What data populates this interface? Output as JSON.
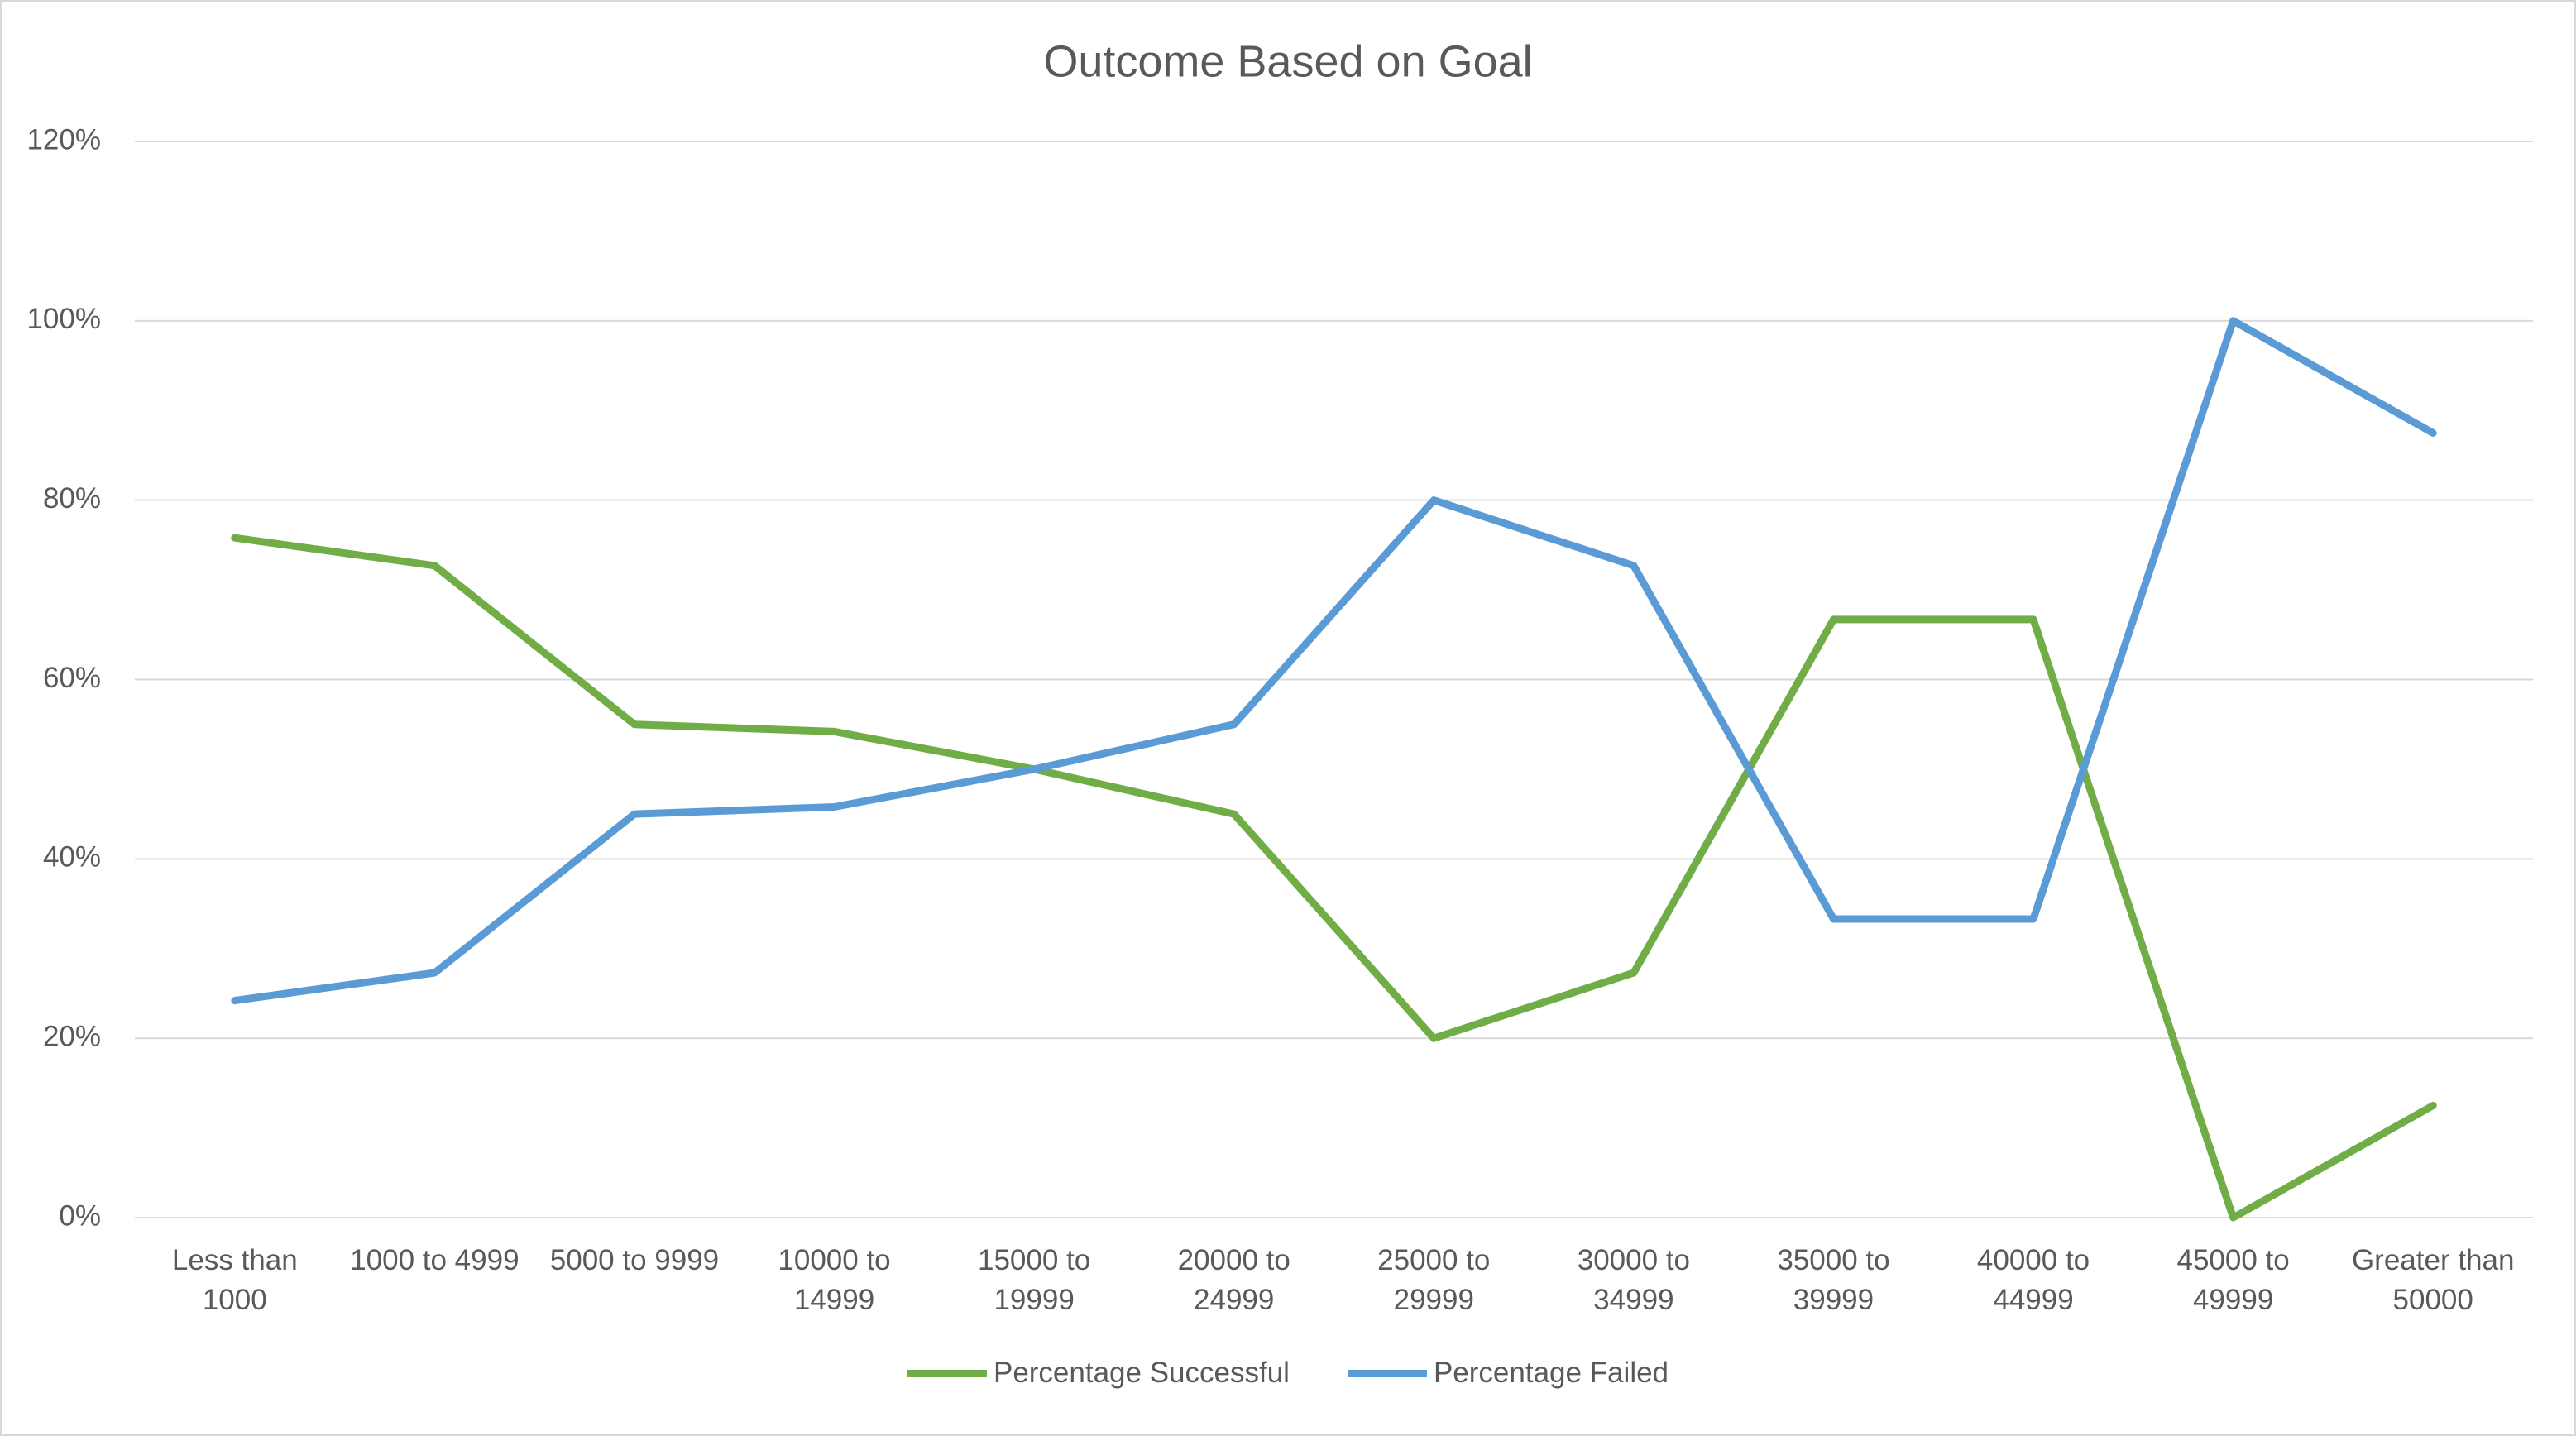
{
  "chart_data": {
    "type": "line",
    "title": "Outcome Based on Goal",
    "categories": [
      "Less than 1000",
      "1000 to 4999",
      "5000 to 9999",
      "10000 to 14999",
      "15000 to 19999",
      "20000 to 24999",
      "25000 to 29999",
      "30000 to 34999",
      "35000 to 39999",
      "40000 to 44999",
      "45000 to 49999",
      "Greater than 50000"
    ],
    "series": [
      {
        "name": "Percentage Successful",
        "color": "#70ad47",
        "values": [
          75.8,
          72.7,
          55.0,
          54.2,
          50.0,
          45.0,
          20.0,
          27.3,
          66.7,
          66.7,
          0,
          12.5
        ]
      },
      {
        "name": "Percentage Failed",
        "color": "#5b9bd5",
        "values": [
          24.2,
          27.3,
          45.0,
          45.8,
          50.0,
          55.0,
          80.0,
          72.7,
          33.3,
          33.3,
          100,
          87.5
        ]
      }
    ],
    "ylim": [
      0,
      120
    ],
    "yticks": [
      {
        "value": 0,
        "label": "0%"
      },
      {
        "value": 20,
        "label": "20%"
      },
      {
        "value": 40,
        "label": "40%"
      },
      {
        "value": 60,
        "label": "60%"
      },
      {
        "value": 80,
        "label": "80%"
      },
      {
        "value": 100,
        "label": "100%"
      },
      {
        "value": 120,
        "label": "120%"
      }
    ],
    "grid": true,
    "legend": "bottom"
  }
}
